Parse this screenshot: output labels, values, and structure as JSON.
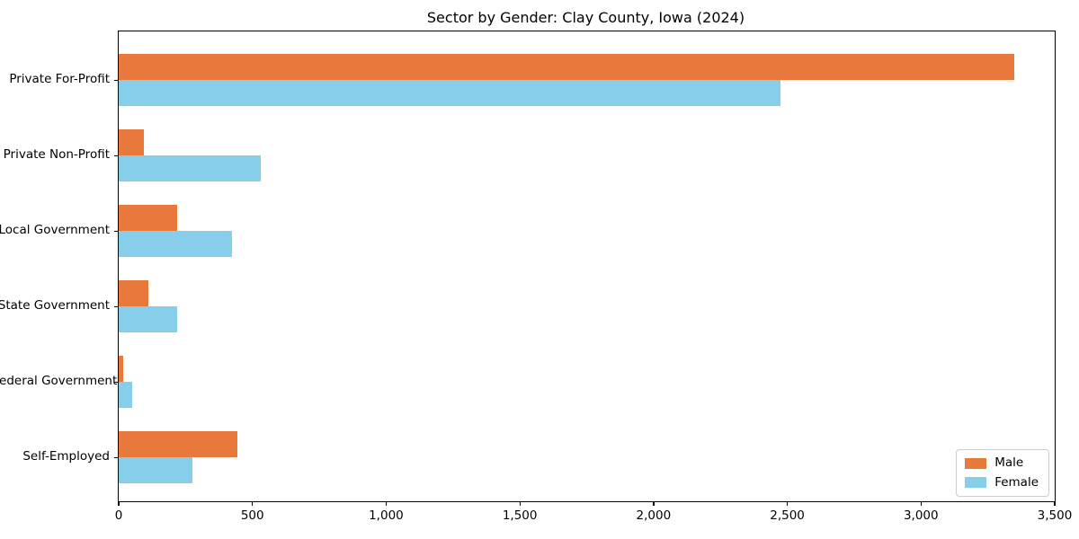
{
  "chart_data": {
    "type": "bar",
    "orientation": "horizontal",
    "title": "Sector by Gender: Clay County, Iowa (2024)",
    "categories": [
      "Private For-Profit",
      "Private Non-Profit",
      "Local Government",
      "State Government",
      "Federal Government",
      "Self-Employed"
    ],
    "series": [
      {
        "name": "Male",
        "color": "#e8793c",
        "values": [
          3350,
          95,
          220,
          110,
          15,
          445
        ]
      },
      {
        "name": "Female",
        "color": "#87ceeb",
        "values": [
          2475,
          530,
          425,
          220,
          50,
          275
        ]
      }
    ],
    "xlabel": "",
    "ylabel": "",
    "xlim": [
      0,
      3500
    ],
    "x_ticks": [
      0,
      500,
      1000,
      1500,
      2000,
      2500,
      3000,
      3500
    ],
    "x_tick_labels": [
      "0",
      "500",
      "1,000",
      "1,500",
      "2,000",
      "2,500",
      "3,000",
      "3,500"
    ],
    "grid": false,
    "legend": {
      "position": "lower-right"
    }
  }
}
